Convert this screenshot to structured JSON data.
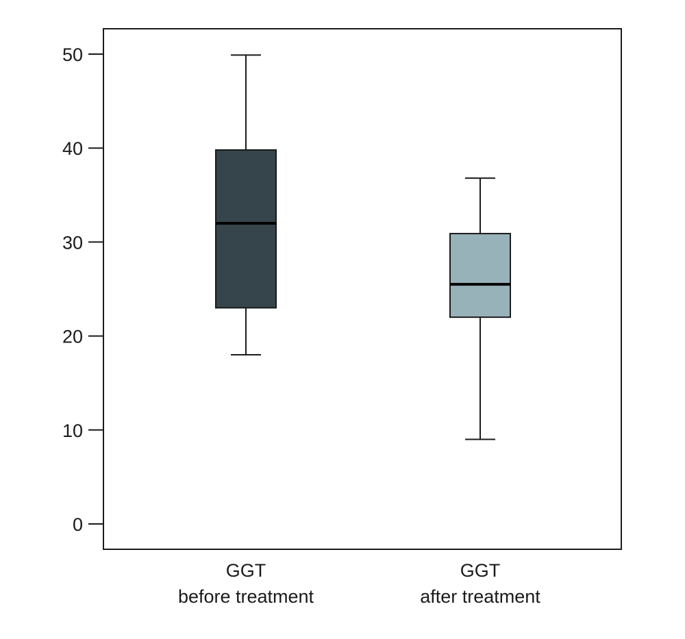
{
  "chart_data": {
    "type": "box",
    "title": "",
    "xlabel": "",
    "ylabel": "",
    "ylim": [
      -2.7,
      52.7
    ],
    "yticks": [
      0,
      10,
      20,
      30,
      40,
      50
    ],
    "grid": false,
    "legend": "none",
    "categories": [
      {
        "line1": "GGT",
        "line2": "before treatment"
      },
      {
        "line1": "GGT",
        "line2": "after treatment"
      }
    ],
    "boxes": [
      {
        "whisker_low": 18,
        "q1": 23,
        "median": 32,
        "q3": 39.8,
        "whisker_high": 49.9,
        "color": "#36454b"
      },
      {
        "whisker_low": 9,
        "q1": 22,
        "median": 25.5,
        "q3": 30.9,
        "whisker_high": 36.8,
        "color": "#98b2ba"
      }
    ]
  }
}
